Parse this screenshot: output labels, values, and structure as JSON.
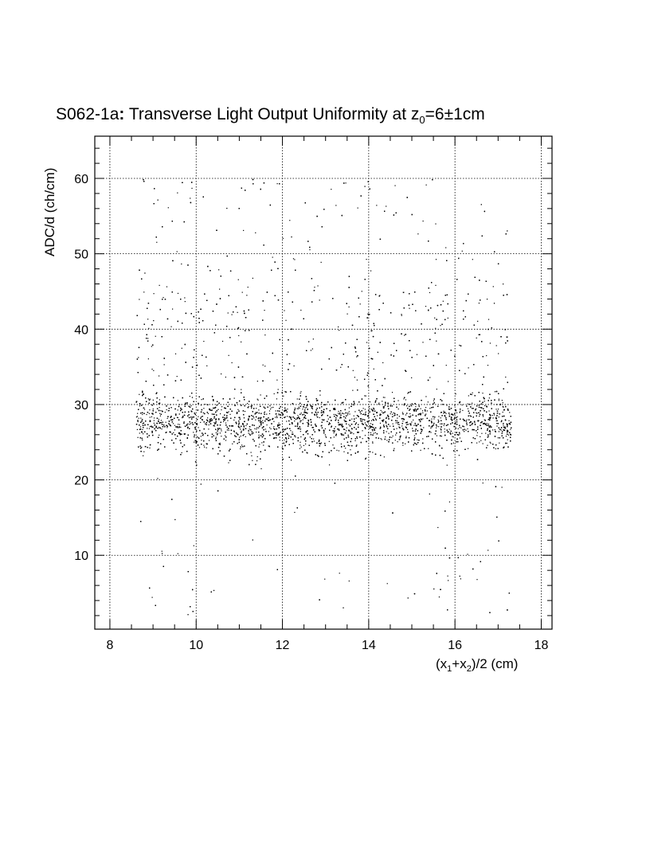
{
  "chart_data": {
    "type": "scatter",
    "title": {
      "prefix": "S062-1a",
      "colon": ":",
      "main": " Transverse Light Output Uniformity at z",
      "sub": "0",
      "suffix": "=6±1cm"
    },
    "xlabel": {
      "p1": "(x",
      "s1": "1",
      "p2": "+x",
      "s2": "2",
      "p3": ")/2 (cm)"
    },
    "ylabel": "ADC/d (ch/cm)",
    "xlim": [
      7.65,
      18.25
    ],
    "ylim": [
      0.2,
      65.6
    ],
    "x_ticks": [
      "8",
      "10",
      "12",
      "14",
      "16",
      "18"
    ],
    "y_ticks": [
      "10",
      "20",
      "30",
      "40",
      "50",
      "60"
    ],
    "grid": true,
    "marker_color": "#000000",
    "approximate_points": 9000,
    "density_description": "dense band between ~23 and ~33 ch/cm spanning x from 8.6 to 17.3 cm; sparse tails up to 60 ch/cm and down to 2 ch/cm near the edges",
    "points": [
      [
        8.7,
        27.1
      ],
      [
        9.0,
        30.2
      ],
      [
        9.3,
        26.4
      ],
      [
        9.6,
        28.8
      ],
      [
        9.9,
        31.0
      ],
      [
        10.2,
        27.5
      ],
      [
        10.5,
        29.4
      ],
      [
        10.8,
        26.2
      ],
      [
        11.1,
        28.3
      ],
      [
        11.4,
        27.0
      ],
      [
        11.7,
        29.9
      ],
      [
        12.0,
        26.8
      ],
      [
        12.3,
        28.1
      ],
      [
        12.6,
        27.4
      ],
      [
        12.9,
        29.0
      ],
      [
        13.2,
        26.6
      ],
      [
        13.5,
        28.7
      ],
      [
        13.8,
        27.9
      ],
      [
        14.1,
        29.6
      ],
      [
        14.4,
        27.3
      ],
      [
        14.7,
        28.5
      ],
      [
        15.0,
        26.9
      ],
      [
        15.3,
        29.2
      ],
      [
        15.6,
        27.7
      ],
      [
        15.9,
        28.4
      ],
      [
        16.2,
        26.5
      ],
      [
        16.5,
        28.9
      ],
      [
        16.8,
        27.2
      ],
      [
        17.1,
        29.8
      ],
      [
        8.8,
        47.5
      ],
      [
        9.1,
        57.2
      ],
      [
        9.2,
        10.3
      ],
      [
        9.5,
        14.8
      ],
      [
        9.8,
        2.2
      ],
      [
        10.4,
        5.4
      ],
      [
        10.7,
        56.1
      ],
      [
        11.3,
        12.1
      ],
      [
        12.2,
        52.3
      ],
      [
        13.4,
        3.1
      ],
      [
        13.9,
        59.0
      ],
      [
        14.9,
        4.4
      ],
      [
        15.5,
        5.6
      ],
      [
        16.1,
        7.3
      ],
      [
        16.6,
        56.6
      ],
      [
        17.2,
        53.1
      ],
      [
        9.0,
        41.2
      ],
      [
        16.9,
        43.5
      ],
      [
        12.6,
        38.4
      ],
      [
        14.2,
        37.0
      ],
      [
        10.1,
        19.5
      ],
      [
        15.4,
        18.2
      ]
    ]
  }
}
